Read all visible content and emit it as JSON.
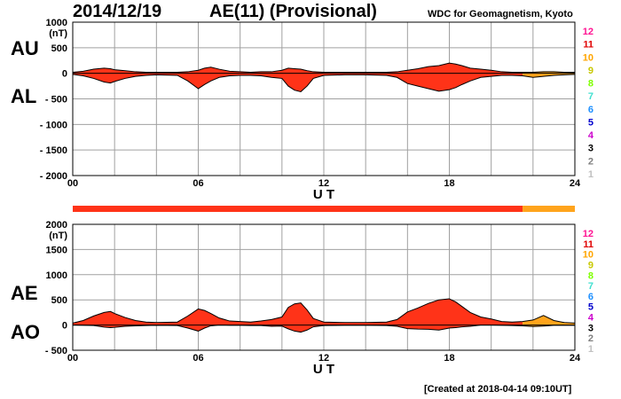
{
  "header": {
    "date": "2014/12/19",
    "title": "AE(11) (Provisional)",
    "source": "WDC for Geomagnetism, Kyoto"
  },
  "footer": {
    "created": "[Created at 2018-04-14 09:10UT]"
  },
  "colors": {
    "fill_main": "#ff3318",
    "fill_late": "#ffa41c",
    "grid": "#a0a0a0",
    "line": "#000000",
    "scale_colors": [
      "#ff1493",
      "#e00000",
      "#ffa500",
      "#c8c800",
      "#7fff00",
      "#40e0d0",
      "#1e90ff",
      "#0000cd",
      "#cc00cc",
      "#000000",
      "#808080",
      "#c0c0c0"
    ]
  },
  "scale_legend": [
    "12",
    "11",
    "10",
    "9",
    "8",
    "7",
    "6",
    "5",
    "4",
    "3",
    "2",
    "1"
  ],
  "station_bar": {
    "segments": [
      {
        "from": 0,
        "to": 21.5,
        "count": 11
      },
      {
        "from": 21.5,
        "to": 24,
        "count": 10
      }
    ]
  },
  "chart_data": [
    {
      "type": "area",
      "panel": "top",
      "unit": "(nT)",
      "side_labels": [
        "AU",
        "AL"
      ],
      "xlabel": "U T",
      "xlim": [
        0,
        24
      ],
      "xticks": [
        "00",
        "06",
        "12",
        "18",
        "24"
      ],
      "ylim": [
        -2000,
        1000
      ],
      "yticks": [
        {
          "v": 1000,
          "label": "1000"
        },
        {
          "v": 500,
          "label": "500"
        },
        {
          "v": 0,
          "label": "0"
        },
        {
          "v": -500,
          "label": "- 500"
        },
        {
          "v": -1000,
          "label": "- 1000"
        },
        {
          "v": -1500,
          "label": "- 1500"
        },
        {
          "v": -2000,
          "label": "- 2000"
        }
      ],
      "x": [
        0,
        0.5,
        1,
        1.5,
        1.8,
        2,
        2.5,
        3,
        3.5,
        4,
        5,
        5.5,
        6,
        6.3,
        6.6,
        7,
        7.5,
        8,
        8.5,
        9,
        9.5,
        10,
        10.3,
        10.6,
        10.9,
        11.2,
        11.5,
        12,
        13,
        14,
        15,
        15.5,
        16,
        16.5,
        17,
        17.5,
        18,
        18.3,
        18.6,
        19,
        19.5,
        20,
        20.5,
        21,
        21.5,
        22,
        22.5,
        23,
        23.5,
        24
      ],
      "series": [
        {
          "values": [
            20,
            40,
            80,
            100,
            90,
            70,
            50,
            30,
            20,
            20,
            20,
            30,
            60,
            100,
            120,
            80,
            40,
            30,
            20,
            30,
            30,
            60,
            100,
            90,
            80,
            50,
            30,
            20,
            20,
            20,
            20,
            30,
            60,
            90,
            130,
            150,
            200,
            180,
            150,
            100,
            80,
            60,
            30,
            20,
            20,
            20,
            30,
            30,
            20,
            20
          ]
        },
        {
          "values": [
            -20,
            -50,
            -100,
            -170,
            -190,
            -160,
            -100,
            -60,
            -40,
            -30,
            -40,
            -150,
            -300,
            -220,
            -150,
            -80,
            -50,
            -40,
            -40,
            -50,
            -80,
            -100,
            -250,
            -330,
            -360,
            -250,
            -100,
            -40,
            -30,
            -30,
            -40,
            -80,
            -200,
            -250,
            -300,
            -350,
            -320,
            -280,
            -220,
            -150,
            -80,
            -60,
            -40,
            -40,
            -50,
            -80,
            -60,
            -40,
            -30,
            -20
          ]
        }
      ]
    },
    {
      "type": "area",
      "panel": "bottom",
      "unit": "(nT)",
      "side_labels": [
        "AE",
        "AO"
      ],
      "xlabel": "U T",
      "xlim": [
        0,
        24
      ],
      "xticks": [
        "00",
        "06",
        "12",
        "18",
        "24"
      ],
      "ylim": [
        -500,
        2000
      ],
      "yticks": [
        {
          "v": 2000,
          "label": "2000"
        },
        {
          "v": 1500,
          "label": "1500"
        },
        {
          "v": 1000,
          "label": "1000"
        },
        {
          "v": 500,
          "label": "500"
        },
        {
          "v": 0,
          "label": "0"
        },
        {
          "v": -500,
          "label": "- 500"
        }
      ],
      "x": [
        0,
        0.5,
        1,
        1.5,
        1.8,
        2,
        2.5,
        3,
        3.5,
        4,
        5,
        5.5,
        6,
        6.3,
        6.6,
        7,
        7.5,
        8,
        8.5,
        9,
        9.5,
        10,
        10.3,
        10.6,
        10.9,
        11.2,
        11.5,
        12,
        13,
        14,
        15,
        15.5,
        16,
        16.5,
        17,
        17.5,
        18,
        18.3,
        18.6,
        19,
        19.5,
        20,
        20.5,
        21,
        21.5,
        22,
        22.5,
        23,
        23.5,
        24
      ],
      "series": [
        {
          "values": [
            40,
            90,
            180,
            250,
            270,
            230,
            150,
            90,
            60,
            50,
            60,
            180,
            320,
            290,
            230,
            140,
            80,
            70,
            60,
            80,
            110,
            160,
            350,
            420,
            440,
            300,
            130,
            60,
            50,
            50,
            60,
            110,
            260,
            340,
            430,
            500,
            520,
            460,
            370,
            250,
            160,
            120,
            70,
            60,
            70,
            100,
            190,
            90,
            50,
            40
          ]
        },
        {
          "values": [
            0,
            -5,
            -10,
            -40,
            -50,
            -45,
            -25,
            -15,
            -10,
            -5,
            -10,
            -60,
            -120,
            -60,
            -15,
            0,
            -5,
            -5,
            -10,
            -10,
            -25,
            -20,
            -75,
            -120,
            -140,
            -100,
            -35,
            -10,
            -5,
            -5,
            -10,
            -25,
            -70,
            -80,
            -85,
            -100,
            -60,
            -50,
            -35,
            -25,
            0,
            0,
            -5,
            -10,
            -15,
            -30,
            -20,
            -5,
            -5,
            -5
          ]
        }
      ]
    }
  ]
}
